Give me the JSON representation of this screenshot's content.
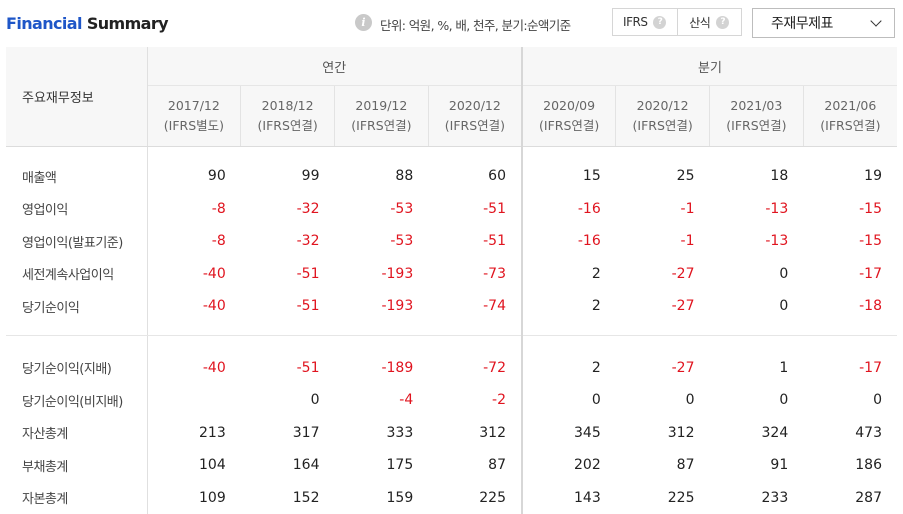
{
  "header": {
    "title_part1": "Financial",
    "title_part2": " Summary",
    "info_glyph": "i",
    "unit_text": "단위: 억원, %, 배, 천주, 분기:순액기준",
    "toggle": [
      {
        "label": "IFRS",
        "help": "?"
      },
      {
        "label": "산식",
        "help": "?"
      }
    ],
    "select_value": "주재무제표"
  },
  "table": {
    "corner_label": "주요재무정보",
    "groups": [
      "연간",
      "분기"
    ],
    "periods": [
      {
        "date": "2017/12",
        "basis": "(IFRS별도)"
      },
      {
        "date": "2018/12",
        "basis": "(IFRS연결)"
      },
      {
        "date": "2019/12",
        "basis": "(IFRS연결)"
      },
      {
        "date": "2020/12",
        "basis": "(IFRS연결)"
      },
      {
        "date": "2020/09",
        "basis": "(IFRS연결)"
      },
      {
        "date": "2020/12",
        "basis": "(IFRS연결)"
      },
      {
        "date": "2021/03",
        "basis": "(IFRS연결)"
      },
      {
        "date": "2021/06",
        "basis": "(IFRS연결)"
      }
    ],
    "section1": [
      {
        "label": "매출액",
        "values": [
          "90",
          "99",
          "88",
          "60",
          "15",
          "25",
          "18",
          "19"
        ]
      },
      {
        "label": "영업이익",
        "values": [
          "-8",
          "-32",
          "-53",
          "-51",
          "-16",
          "-1",
          "-13",
          "-15"
        ]
      },
      {
        "label": "영업이익(발표기준)",
        "values": [
          "-8",
          "-32",
          "-53",
          "-51",
          "-16",
          "-1",
          "-13",
          "-15"
        ]
      },
      {
        "label": "세전계속사업이익",
        "values": [
          "-40",
          "-51",
          "-193",
          "-73",
          "2",
          "-27",
          "0",
          "-17"
        ]
      },
      {
        "label": "당기순이익",
        "values": [
          "-40",
          "-51",
          "-193",
          "-74",
          "2",
          "-27",
          "0",
          "-18"
        ]
      }
    ],
    "section2": [
      {
        "label": "당기순이익(지배)",
        "values": [
          "-40",
          "-51",
          "-189",
          "-72",
          "2",
          "-27",
          "1",
          "-17"
        ]
      },
      {
        "label": "당기순이익(비지배)",
        "values": [
          "",
          "0",
          "-4",
          "-2",
          "0",
          "0",
          "0",
          "0"
        ]
      },
      {
        "label": "자산총계",
        "values": [
          "213",
          "317",
          "333",
          "312",
          "345",
          "312",
          "324",
          "473"
        ]
      },
      {
        "label": "부채총계",
        "values": [
          "104",
          "164",
          "175",
          "87",
          "202",
          "87",
          "91",
          "186"
        ]
      },
      {
        "label": "자본총계",
        "values": [
          "109",
          "152",
          "159",
          "225",
          "143",
          "225",
          "233",
          "287"
        ]
      }
    ]
  },
  "colors": {
    "accent": "#1e56c8",
    "negative": "#e0141f"
  }
}
